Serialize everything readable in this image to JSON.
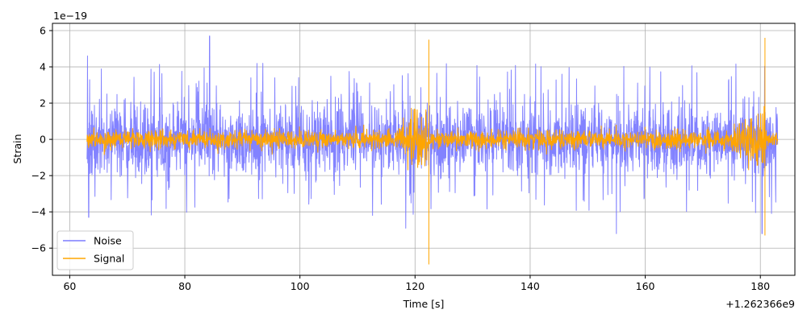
{
  "chart_data": {
    "type": "line",
    "title": "",
    "xlabel": "Time [s]",
    "ylabel": "Strain",
    "x_offset_label": "+1.262366e9",
    "y_scale_label": "1e−19",
    "xlim": [
      57.0,
      186.0
    ],
    "ylim": [
      -7.5,
      6.4
    ],
    "x_ticks": [
      60,
      80,
      100,
      120,
      140,
      160,
      180
    ],
    "x_tick_labels": [
      "60",
      "80",
      "100",
      "120",
      "140",
      "160",
      "180"
    ],
    "y_ticks": [
      -6,
      -4,
      -2,
      0,
      2,
      4,
      6
    ],
    "y_tick_labels": [
      "−6",
      "−4",
      "−2",
      "0",
      "2",
      "4",
      "6"
    ],
    "grid": true,
    "legend_position": "lower-left",
    "series": [
      {
        "name": "Noise",
        "color": "#7b7bff",
        "x_range": [
          63.0,
          183.0
        ],
        "typical_amplitude": 1.3,
        "peak_max": 5.7,
        "peak_min": -5.3,
        "notable_peaks": [
          {
            "x": 63.1,
            "y": 4.6
          },
          {
            "x": 63.3,
            "y": -4.3
          },
          {
            "x": 84.3,
            "y": 5.7
          },
          {
            "x": 118.4,
            "y": -4.9
          },
          {
            "x": 155.0,
            "y": -5.2
          },
          {
            "x": 180.3,
            "y": -5.2
          }
        ]
      },
      {
        "name": "Signal",
        "color": "#ffa500",
        "x_range": [
          63.0,
          183.0
        ],
        "typical_amplitude": 0.5,
        "events": [
          {
            "x": 122.4,
            "max": 5.5,
            "min": -6.9
          },
          {
            "x": 180.8,
            "max": 5.6,
            "min": -5.3
          }
        ]
      }
    ]
  }
}
